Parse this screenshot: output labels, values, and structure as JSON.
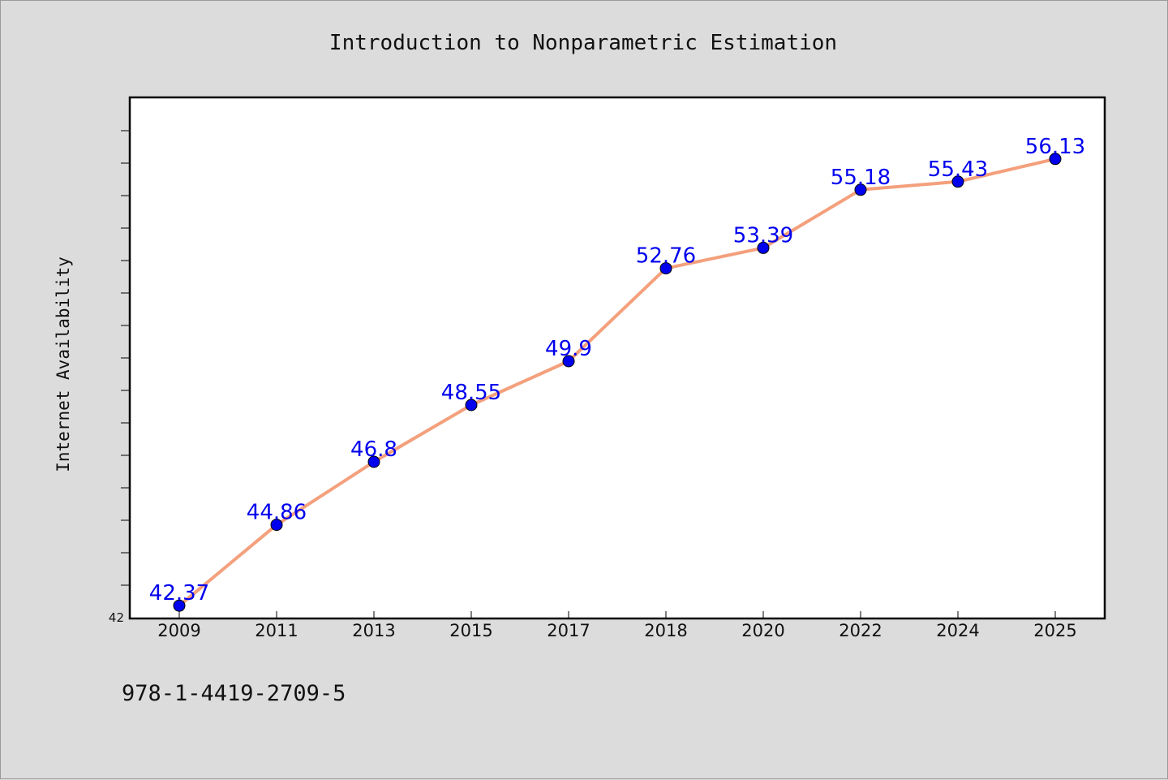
{
  "colors": {
    "background": "#dcdcdc",
    "plot_background": "#ffffff",
    "line": "#f4a07c",
    "marker": "#0000ee",
    "data_label": "#0000ee",
    "text": "#111111"
  },
  "footer": {
    "isbn": "978-1-4419-2709-5"
  },
  "chart_data": {
    "type": "line",
    "title": "Introduction to Nonparametric Estimation",
    "xlabel": "",
    "ylabel": "Internet Availability",
    "categories": [
      "2009",
      "2011",
      "2013",
      "2015",
      "2017",
      "2018",
      "2020",
      "2022",
      "2024",
      "2025"
    ],
    "series": [
      {
        "values": [
          42.37,
          44.86,
          46.8,
          48.55,
          49.9,
          52.76,
          53.39,
          55.18,
          55.43,
          56.13
        ],
        "data_labels": [
          "42.37",
          "44.86",
          "46.8",
          "48.55",
          "49.9",
          "52.76",
          "53.39",
          "55.18",
          "55.43",
          "56.13"
        ]
      }
    ],
    "ylim": [
      42,
      58
    ],
    "y_tick_labels": [
      "42"
    ],
    "y_minor_tick_step": 1,
    "grid": false,
    "legend": "none"
  }
}
